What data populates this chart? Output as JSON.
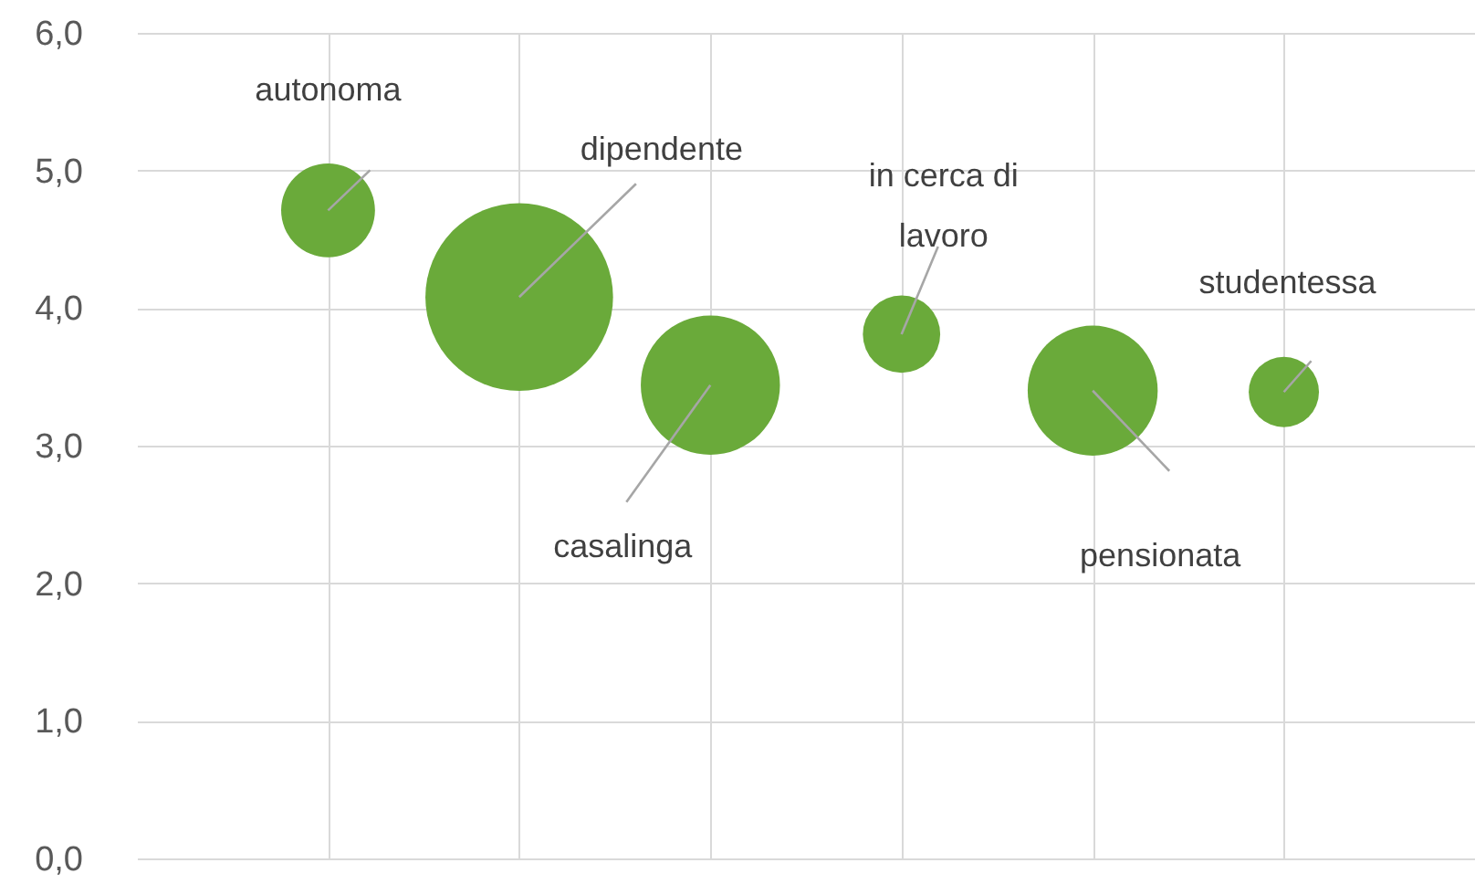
{
  "chart_data": {
    "type": "bubble",
    "categories": [
      null,
      null,
      null,
      null,
      null,
      null
    ],
    "series": [
      {
        "name": "autonoma",
        "color": "#6aaa3a",
        "values": [
          4.71,
          null,
          null,
          null,
          null,
          null
        ],
        "sizes": [
          0.25,
          null,
          null,
          null,
          null,
          null
        ]
      },
      {
        "name": "dipendente",
        "color": "#6aaa3a",
        "values": [
          null,
          4.08,
          null,
          null,
          null,
          null
        ],
        "sizes": [
          null,
          1,
          null,
          null,
          null,
          null
        ]
      },
      {
        "name": "casalinga",
        "color": "#6aaa3a",
        "values": [
          null,
          null,
          3.44,
          null,
          null,
          null
        ],
        "sizes": [
          null,
          null,
          0.55,
          null,
          null,
          null
        ]
      },
      {
        "name": "in cerca di lavoro",
        "color": "#6aaa3a",
        "values": [
          null,
          null,
          null,
          3.81,
          null,
          null
        ],
        "sizes": [
          null,
          null,
          null,
          0.17,
          null,
          null
        ]
      },
      {
        "name": "pensionata",
        "color": "#6aaa3a",
        "values": [
          null,
          null,
          null,
          null,
          3.4,
          null
        ],
        "sizes": [
          null,
          null,
          null,
          null,
          0.48,
          null
        ]
      },
      {
        "name": "studentessa",
        "color": "#6aaa3a",
        "values": [
          null,
          null,
          null,
          null,
          null,
          3.39
        ],
        "sizes": [
          null,
          null,
          null,
          null,
          null,
          0.14
        ]
      }
    ],
    "ylim": [
      0,
      6
    ],
    "yticks": [
      {
        "value": 0,
        "label": "0,0"
      },
      {
        "value": 1,
        "label": "1,0"
      },
      {
        "value": 2,
        "label": "2,0"
      },
      {
        "value": 3,
        "label": "3,0"
      },
      {
        "value": 4,
        "label": "4,0"
      },
      {
        "value": 5,
        "label": "5,0"
      },
      {
        "value": 6,
        "label": "6,0"
      }
    ],
    "grid": true,
    "tick_labels": "y"
  }
}
